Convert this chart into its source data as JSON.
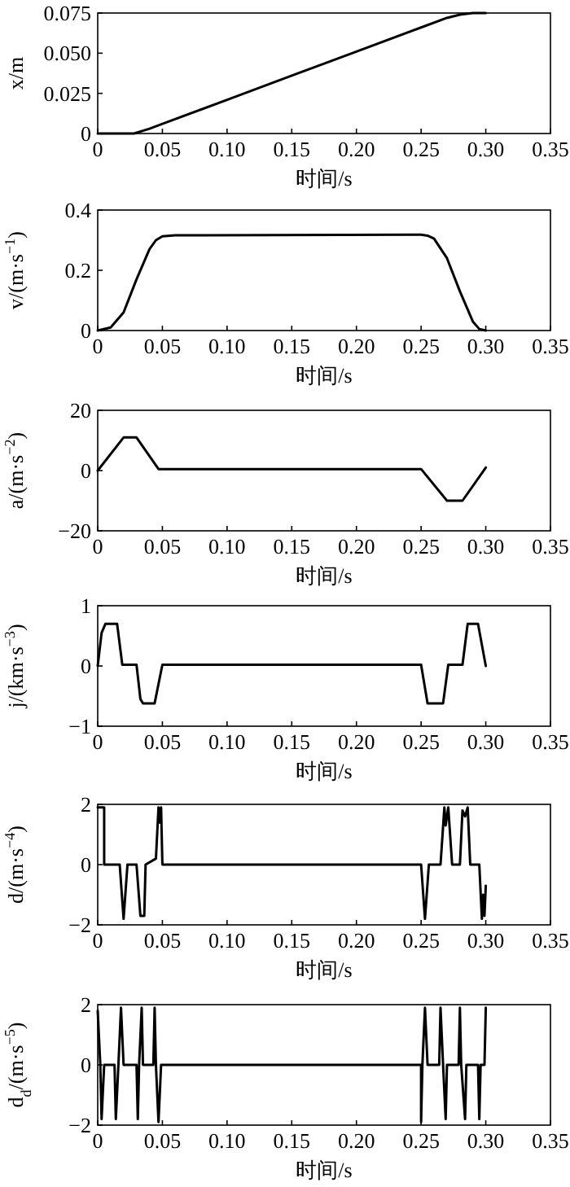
{
  "chart_data": [
    {
      "type": "line",
      "ylabel": "x/m",
      "xlabel": "时间/s",
      "x": [
        0,
        0.02,
        0.028,
        0.04,
        0.05,
        0.1,
        0.15,
        0.2,
        0.25,
        0.27,
        0.28,
        0.29,
        0.3
      ],
      "series": [
        {
          "color": "#000000",
          "values": [
            0,
            0,
            0,
            0.003,
            0.006,
            0.021,
            0.036,
            0.051,
            0.066,
            0.072,
            0.074,
            0.075,
            0.075
          ]
        }
      ],
      "xlim": [
        0,
        0.35
      ],
      "xticks": [
        0,
        0.05,
        {
          "value": 0.1,
          "label": "0.10"
        },
        0.15,
        {
          "value": 0.2,
          "label": "0.20"
        },
        0.25,
        {
          "value": 0.3,
          "label": "0.30"
        },
        0.35
      ],
      "ylim": [
        0,
        0.075
      ],
      "yticks": [
        0,
        0.025,
        {
          "value": 0.05,
          "label": "0.050"
        },
        0.075
      ],
      "line_style": "solid",
      "marker": "none"
    },
    {
      "type": "line",
      "ylabel": "v/(m·s$^{−1}$)",
      "xlabel": "时间/s",
      "x": [
        0,
        0.01,
        0.02,
        0.03,
        0.04,
        0.045,
        0.05,
        0.06,
        0.25,
        0.255,
        0.26,
        0.27,
        0.28,
        0.29,
        0.295,
        0.3
      ],
      "series": [
        {
          "color": "#000000",
          "values": [
            0,
            0.01,
            0.06,
            0.17,
            0.27,
            0.3,
            0.313,
            0.316,
            0.318,
            0.315,
            0.305,
            0.24,
            0.13,
            0.03,
            0.005,
            0
          ]
        }
      ],
      "xlim": [
        0,
        0.35
      ],
      "xticks": [
        0,
        0.05,
        {
          "value": 0.1,
          "label": "0.10"
        },
        0.15,
        {
          "value": 0.2,
          "label": "0.20"
        },
        0.25,
        {
          "value": 0.3,
          "label": "0.30"
        },
        0.35
      ],
      "ylim": [
        0,
        0.4
      ],
      "yticks": [
        0,
        0.2,
        0.4
      ],
      "line_style": "solid",
      "marker": "none"
    },
    {
      "type": "line",
      "ylabel": "a/(m·s$^{−2}$)",
      "xlabel": "时间/s",
      "x": [
        0,
        0.02,
        0.03,
        0.047,
        0.25,
        0.27,
        0.282,
        0.3
      ],
      "series": [
        {
          "color": "#000000",
          "values": [
            0,
            11,
            11,
            0.5,
            0.5,
            -10,
            -10,
            1
          ]
        }
      ],
      "xlim": [
        0,
        0.35
      ],
      "xticks": [
        0,
        0.05,
        {
          "value": 0.1,
          "label": "0.10"
        },
        0.15,
        {
          "value": 0.2,
          "label": "0.20"
        },
        0.25,
        {
          "value": 0.3,
          "label": "0.30"
        },
        0.35
      ],
      "ylim": [
        -20,
        20
      ],
      "yticks": [
        {
          "value": -20,
          "label": "−20"
        },
        0,
        20
      ],
      "line_style": "solid",
      "marker": "none"
    },
    {
      "type": "line",
      "ylabel": "j/(km·s$^{−3}$)",
      "xlabel": "时间/s",
      "x": [
        0,
        0.003,
        0.006,
        0.015,
        0.019,
        0.03,
        0.033,
        0.035,
        0.044,
        0.05,
        0.25,
        0.255,
        0.267,
        0.271,
        0.282,
        0.286,
        0.294,
        0.3
      ],
      "series": [
        {
          "color": "#000000",
          "values": [
            0,
            0.55,
            0.7,
            0.7,
            0.02,
            0.02,
            -0.55,
            -0.62,
            -0.62,
            0.02,
            0.02,
            -0.62,
            -0.62,
            0.02,
            0.02,
            0.7,
            0.7,
            0
          ]
        }
      ],
      "xlim": [
        0,
        0.35
      ],
      "xticks": [
        0,
        0.05,
        {
          "value": 0.1,
          "label": "0.10"
        },
        0.15,
        {
          "value": 0.2,
          "label": "0.20"
        },
        0.25,
        {
          "value": 0.3,
          "label": "0.30"
        },
        0.35
      ],
      "ylim": [
        -1,
        1
      ],
      "yticks": [
        {
          "value": -1,
          "label": "−1"
        },
        0,
        1
      ],
      "line_style": "solid",
      "marker": "none"
    },
    {
      "type": "line",
      "ylabel": "d/(m·s$^{−4}$)",
      "xlabel": "时间/s",
      "x": [
        0,
        0.005,
        0.005,
        0.017,
        0.02,
        0.023,
        0.03,
        0.033,
        0.036,
        0.037,
        0.045,
        0.047,
        0.048,
        0.049,
        0.05,
        0.25,
        0.253,
        0.256,
        0.265,
        0.268,
        0.269,
        0.271,
        0.274,
        0.28,
        0.282,
        0.284,
        0.286,
        0.288,
        0.295,
        0.297,
        0.298,
        0.299,
        0.3
      ],
      "series": [
        {
          "color": "#000000",
          "values": [
            1.9,
            1.9,
            0,
            0,
            -1.8,
            0,
            0,
            -1.7,
            -1.7,
            0,
            0.2,
            1.9,
            1.4,
            1.9,
            0,
            0,
            -1.8,
            0,
            0,
            1.9,
            1.3,
            1.9,
            0,
            0,
            1.8,
            1.6,
            1.9,
            0,
            0,
            -1.8,
            -1,
            -1.7,
            -0.7
          ]
        }
      ],
      "xlim": [
        0,
        0.35
      ],
      "xticks": [
        0,
        0.05,
        {
          "value": 0.1,
          "label": "0.10"
        },
        0.15,
        {
          "value": 0.2,
          "label": "0.20"
        },
        0.25,
        {
          "value": 0.3,
          "label": "0.30"
        },
        0.35
      ],
      "ylim": [
        -2,
        2
      ],
      "yticks": [
        {
          "value": -2,
          "label": "−2"
        },
        0,
        2
      ],
      "line_style": "solid",
      "marker": "none"
    },
    {
      "type": "line",
      "ylabel": "d$_{d}$/(m·s$^{−5}$)",
      "xlabel": "时间/s",
      "x": [
        0,
        0.002,
        0.003,
        0.005,
        0.013,
        0.014,
        0.016,
        0.018,
        0.02,
        0.03,
        0.031,
        0.032,
        0.034,
        0.035,
        0.043,
        0.044,
        0.045,
        0.047,
        0.049,
        0.25,
        0.25,
        0.251,
        0.253,
        0.255,
        0.264,
        0.265,
        0.267,
        0.269,
        0.27,
        0.279,
        0.28,
        0.281,
        0.284,
        0.285,
        0.294,
        0.295,
        0.296,
        0.299,
        0.3
      ],
      "series": [
        {
          "color": "#000000",
          "values": [
            1.8,
            0,
            -1.8,
            0,
            0,
            -1.8,
            0,
            1.9,
            0,
            0,
            -1.8,
            0,
            1.9,
            0,
            0,
            1.9,
            0,
            -1.9,
            0,
            0,
            -1.9,
            0,
            1.9,
            0,
            0,
            1.9,
            0,
            -1.8,
            0,
            0,
            1.9,
            0,
            -1.8,
            0,
            0,
            -1.8,
            0,
            0,
            1.9
          ]
        }
      ],
      "xlim": [
        0,
        0.35
      ],
      "xticks": [
        0,
        0.05,
        {
          "value": 0.1,
          "label": "0.10"
        },
        0.15,
        {
          "value": 0.2,
          "label": "0.20"
        },
        0.25,
        {
          "value": 0.3,
          "label": "0.30"
        },
        0.35
      ],
      "ylim": [
        -2,
        2
      ],
      "yticks": [
        {
          "value": -2,
          "label": "−2"
        },
        0,
        2
      ],
      "line_style": "solid",
      "marker": "none"
    }
  ]
}
